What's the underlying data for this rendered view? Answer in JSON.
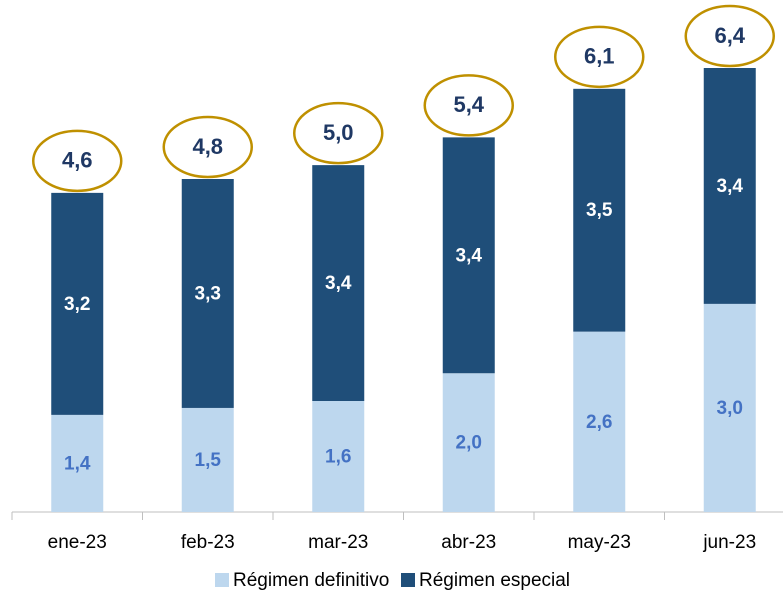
{
  "chart_data": {
    "type": "stacked_bar",
    "categories": [
      "ene-23",
      "feb-23",
      "mar-23",
      "abr-23",
      "may-23",
      "jun-23"
    ],
    "series": [
      {
        "name": "Régimen definitivo",
        "color": "#bdd7ee",
        "label_color": "#4472c4",
        "values": [
          1.4,
          1.5,
          1.6,
          2.0,
          2.6,
          3.0
        ],
        "value_labels": [
          "1,4",
          "1,5",
          "1,6",
          "2,0",
          "2,6",
          "3,0"
        ]
      },
      {
        "name": "Régimen especial",
        "color": "#1f4e79",
        "label_color": "#ffffff",
        "values": [
          3.2,
          3.3,
          3.4,
          3.4,
          3.5,
          3.4
        ],
        "value_labels": [
          "3,2",
          "3,3",
          "3,4",
          "3,4",
          "3,5",
          "3,4"
        ]
      }
    ],
    "totals": [
      4.6,
      4.8,
      5.0,
      5.4,
      6.1,
      6.4
    ],
    "total_labels": [
      "4,6",
      "4,8",
      "5,0",
      "5,4",
      "6,1",
      "6,4"
    ],
    "total_circle_color": "#bf9000",
    "legend": "bottom"
  }
}
